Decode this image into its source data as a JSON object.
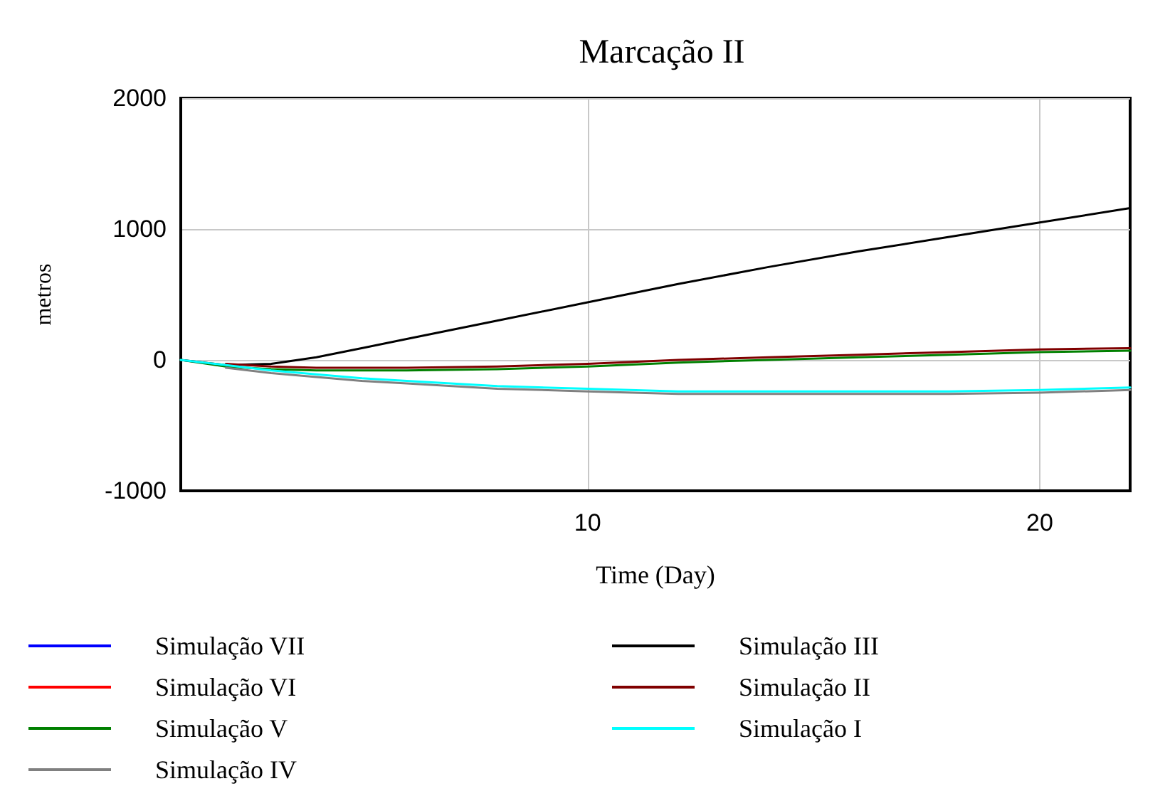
{
  "chart_data": {
    "type": "line",
    "title": "Marcação II",
    "xlabel": "Time (Day)",
    "ylabel": "metros",
    "x": [
      1,
      2,
      3,
      4,
      5,
      6,
      8,
      10,
      12,
      14,
      16,
      18,
      20,
      22
    ],
    "xlim": [
      1,
      22
    ],
    "xticks": [
      10,
      20
    ],
    "ylim": [
      -1000,
      2000
    ],
    "yticks": [
      -1000,
      0,
      1000,
      2000
    ],
    "grid": true,
    "legend": "bottom",
    "line_style": "solid",
    "marker": "none",
    "series": [
      {
        "name": "Simulação VII",
        "color": "#0000ff",
        "values": [
          null,
          null,
          null,
          null,
          null,
          null,
          null,
          null,
          null,
          null,
          null,
          null,
          null,
          null
        ]
      },
      {
        "name": "Simulação VI",
        "color": "#ff0000",
        "values": [
          null,
          null,
          null,
          null,
          null,
          null,
          null,
          null,
          null,
          null,
          null,
          null,
          null,
          null
        ]
      },
      {
        "name": "Simulação V",
        "color": "#008000",
        "values": [
          0,
          -50,
          -70,
          -80,
          -80,
          -80,
          -70,
          -50,
          -20,
          0,
          20,
          40,
          60,
          70
        ]
      },
      {
        "name": "Simulação IV",
        "color": "#808080",
        "values": [
          null,
          -60,
          -100,
          -130,
          -160,
          -180,
          -220,
          -240,
          -260,
          -260,
          -260,
          -260,
          -250,
          -230
        ]
      },
      {
        "name": "Simulação III",
        "color": "#000000",
        "values": [
          0,
          -40,
          -30,
          20,
          90,
          160,
          300,
          440,
          580,
          710,
          830,
          940,
          1050,
          1160
        ]
      },
      {
        "name": "Simulação II",
        "color": "#800000",
        "values": [
          null,
          -30,
          -50,
          -60,
          -60,
          -60,
          -50,
          -30,
          0,
          20,
          40,
          60,
          80,
          90
        ]
      },
      {
        "name": "Simulação I",
        "color": "#00ffff",
        "values": [
          0,
          -40,
          -80,
          -110,
          -140,
          -160,
          -200,
          -220,
          -240,
          -240,
          -240,
          -240,
          -230,
          -210
        ]
      }
    ]
  }
}
